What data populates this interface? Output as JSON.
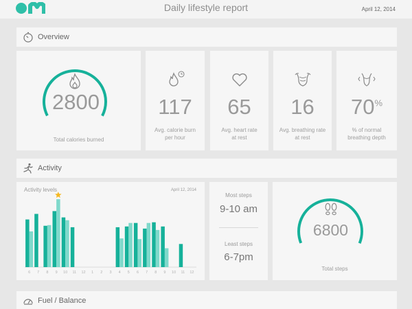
{
  "header": {
    "logo": "OM",
    "title": "Daily lifestyle report",
    "date": "April 12, 2014"
  },
  "colors": {
    "accent": "#16b19a",
    "accent_light": "#7fd9cb",
    "star": "#f5b820",
    "background": "#e7e7e7",
    "card": "#f6f6f6"
  },
  "overview": {
    "title": "Overview",
    "icon": "stopwatch-icon",
    "calories": {
      "value": "2800",
      "label": "Total calories burned",
      "icon": "flame-icon",
      "ring_fraction": 0.65
    },
    "stats": [
      {
        "value": "117",
        "label1": "Avg. calorie burn",
        "label2": "per hour",
        "icon": "flame-clock-icon"
      },
      {
        "value": "65",
        "label1": "Avg. heart rate",
        "label2": "at rest",
        "icon": "heart-icon"
      },
      {
        "value": "16",
        "label1": "Avg. breathing rate",
        "label2": "at rest",
        "icon": "lungs-torso-icon"
      },
      {
        "value": "70",
        "unit": "%",
        "label1": "% of normal",
        "label2": "breathing depth",
        "icon": "chest-expand-icon"
      }
    ]
  },
  "activity": {
    "title": "Activity",
    "icon": "runner-icon",
    "chart": {
      "title": "Activity levels",
      "date": "April 12, 2014",
      "peak_icon": "star-icon"
    },
    "steps": {
      "most_label": "Most steps",
      "most_value": "9-10 am",
      "least_label": "Least steps",
      "least_value": "6-7pm"
    },
    "total": {
      "value": "6800",
      "label": "Total steps",
      "icon": "footprints-icon",
      "ring_fraction": 0.62
    }
  },
  "fuel": {
    "title": "Fuel / Balance",
    "icon": "gauge-icon"
  },
  "chart_data": {
    "type": "bar",
    "title": "Activity levels",
    "subtitle": "April 12, 2014",
    "categories": [
      "6",
      "7",
      "8",
      "9",
      "10",
      "11",
      "12",
      "1",
      "2",
      "3",
      "4",
      "5",
      "6",
      "7",
      "8",
      "9",
      "10",
      "11",
      "12"
    ],
    "series": [
      {
        "values": [
          68,
          76,
          59,
          80,
          71,
          57,
          0,
          0,
          0,
          0,
          57,
          58,
          63,
          55,
          64,
          58,
          0,
          33,
          0
        ]
      },
      {
        "values": [
          51,
          0,
          60,
          97,
          67,
          0,
          0,
          0,
          0,
          0,
          41,
          63,
          40,
          63,
          53,
          27,
          0,
          0,
          0
        ]
      }
    ],
    "ylim": [
      0,
      100
    ],
    "grid": false,
    "peak_marker": "star"
  }
}
